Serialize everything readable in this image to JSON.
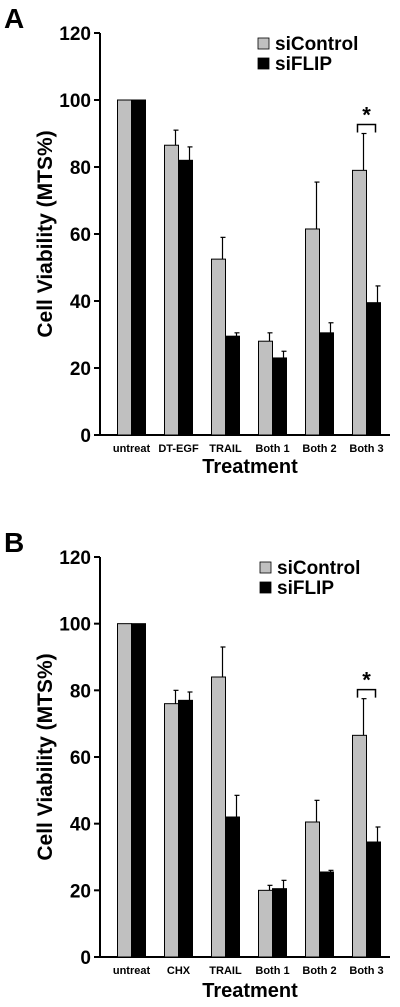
{
  "chart_data": [
    {
      "type": "bar",
      "panel_label": "A",
      "categories": [
        "untreat",
        "DT-EGF",
        "TRAIL",
        "Both 1",
        "Both 2",
        "Both 3"
      ],
      "series": [
        {
          "name": "siControl",
          "color": "#c0c0c0",
          "values": [
            100,
            86.5,
            52.5,
            28,
            61.5,
            79
          ],
          "errors": [
            0,
            4.5,
            6.5,
            2.5,
            14,
            11
          ]
        },
        {
          "name": "siFLIP",
          "color": "#000000",
          "values": [
            100,
            82,
            29.5,
            23,
            30.5,
            39.5
          ],
          "errors": [
            0,
            4,
            1,
            2,
            3,
            5
          ]
        }
      ],
      "xlabel": "Treatment",
      "ylabel": "Cell Viability (MTS%)",
      "ylim": [
        0,
        120
      ],
      "yticks": [
        0,
        20,
        40,
        60,
        80,
        100,
        120
      ],
      "significance": {
        "category": "Both 3",
        "marker": "*"
      },
      "legend_position": "top-right",
      "grid": false
    },
    {
      "type": "bar",
      "panel_label": "B",
      "categories": [
        "untreat",
        "CHX",
        "TRAIL",
        "Both 1",
        "Both 2",
        "Both 3"
      ],
      "series": [
        {
          "name": "siControl",
          "color": "#c0c0c0",
          "values": [
            100,
            76,
            84,
            20,
            40.5,
            66.5
          ],
          "errors": [
            0,
            4,
            9,
            1.5,
            6.5,
            11
          ]
        },
        {
          "name": "siFLIP",
          "color": "#000000",
          "values": [
            100,
            77,
            42,
            20.5,
            25.5,
            34.5
          ],
          "errors": [
            0,
            2.5,
            6.5,
            2.5,
            0.5,
            4.5
          ]
        }
      ],
      "xlabel": "Treatment",
      "ylabel": "Cell Viability (MTS%)",
      "ylim": [
        0,
        120
      ],
      "yticks": [
        0,
        20,
        40,
        60,
        80,
        100,
        120
      ],
      "significance": {
        "category": "Both 3",
        "marker": "*"
      },
      "legend_position": "top-right",
      "grid": false
    }
  ]
}
